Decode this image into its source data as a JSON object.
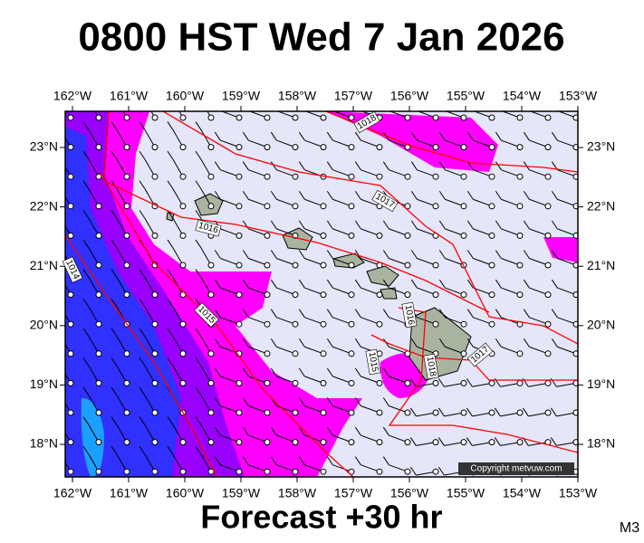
{
  "header": {
    "title": "0800 HST Wed 7 Jan 2026"
  },
  "footer": {
    "subtitle": "Forecast +30 hr",
    "code": "M3"
  },
  "map": {
    "copyright": "Copyright metvuw.com",
    "lon_labels": [
      "162°W",
      "161°W",
      "160°W",
      "159°W",
      "158°W",
      "157°W",
      "156°W",
      "155°W",
      "154°W",
      "153°W"
    ],
    "lat_labels": [
      "23°N",
      "22°N",
      "21°N",
      "20°N",
      "19°N",
      "18°N"
    ],
    "isobar_labels": [
      "1018",
      "1017",
      "1016",
      "1014",
      "1015",
      "1016",
      "1015",
      "1018",
      "1017"
    ]
  }
}
